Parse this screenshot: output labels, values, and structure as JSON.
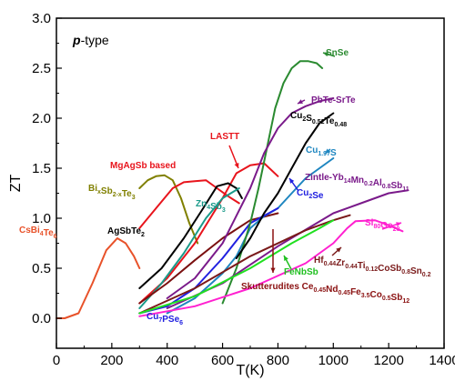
{
  "chart_data": {
    "type": "line",
    "panel_label": {
      "bold": "p",
      "rest": "-type"
    },
    "xlabel": "T(K)",
    "ylabel": "ZT",
    "xlim": [
      0,
      1400
    ],
    "ylim": [
      -0.3,
      3.0
    ],
    "xticks": [
      0,
      200,
      400,
      600,
      800,
      1000,
      1200,
      1400
    ],
    "yticks": [
      0.0,
      0.5,
      1.0,
      1.5,
      2.0,
      2.5,
      3.0
    ],
    "grid": false,
    "series": [
      {
        "color": "#e8522a",
        "x": [
          0,
          30,
          80,
          130,
          180,
          220,
          250,
          280,
          300
        ],
        "y": [
          0.0,
          0.0,
          0.05,
          0.35,
          0.68,
          0.8,
          0.75,
          0.62,
          0.5
        ]
      },
      {
        "color": "#808000",
        "x": [
          300,
          330,
          360,
          390,
          420,
          450,
          480,
          510
        ],
        "y": [
          1.3,
          1.38,
          1.42,
          1.43,
          1.38,
          1.2,
          0.95,
          0.75
        ]
      },
      {
        "color": "#e8141c",
        "x": [
          300,
          360,
          420,
          460,
          500,
          540,
          580,
          620,
          660
        ],
        "y": [
          0.9,
          1.1,
          1.3,
          1.36,
          1.37,
          1.38,
          1.3,
          1.22,
          1.15
        ]
      },
      {
        "color": "#e8141c",
        "x": [
          300,
          400,
          500,
          600,
          650,
          700,
          750,
          800
        ],
        "y": [
          0.15,
          0.4,
          0.75,
          1.2,
          1.45,
          1.53,
          1.55,
          1.42
        ]
      },
      {
        "color": "#000000",
        "x": [
          300,
          380,
          460,
          530,
          580,
          620,
          650,
          670
        ],
        "y": [
          0.3,
          0.5,
          0.8,
          1.1,
          1.32,
          1.35,
          1.3,
          1.2
        ]
      },
      {
        "color": "#1a9a8a",
        "x": [
          300,
          380,
          460,
          540,
          600,
          660
        ],
        "y": [
          0.1,
          0.35,
          0.65,
          1.0,
          1.2,
          1.3
        ]
      },
      {
        "color": "#7a1010",
        "x": [
          300,
          400,
          500,
          600,
          700,
          800
        ],
        "y": [
          0.15,
          0.35,
          0.58,
          0.8,
          0.98,
          1.05
        ]
      },
      {
        "color": "#1e86c0",
        "x": [
          400,
          500,
          600,
          650,
          700,
          750,
          800,
          850,
          900,
          950,
          1000
        ],
        "y": [
          0.05,
          0.2,
          0.45,
          0.62,
          0.9,
          1.02,
          1.1,
          1.25,
          1.4,
          1.5,
          1.6
        ]
      },
      {
        "color": "#2020e0",
        "x": [
          300,
          400,
          500,
          600,
          700,
          800
        ],
        "y": [
          0.05,
          0.12,
          0.3,
          0.6,
          0.95,
          1.1
        ]
      },
      {
        "color": "#2a8a30",
        "x": [
          600,
          650,
          700,
          730,
          760,
          790,
          820,
          850,
          880,
          910,
          940,
          960
        ],
        "y": [
          0.15,
          0.5,
          0.95,
          1.3,
          1.7,
          2.1,
          2.35,
          2.5,
          2.57,
          2.57,
          2.55,
          2.5
        ]
      },
      {
        "color": "#7a1a8a",
        "x": [
          400,
          500,
          600,
          700,
          750,
          800,
          850,
          900,
          950,
          1000
        ],
        "y": [
          0.2,
          0.4,
          0.75,
          1.3,
          1.65,
          1.9,
          2.05,
          2.12,
          2.17,
          2.2
        ]
      },
      {
        "color": "#000000",
        "x": [
          650,
          700,
          750,
          800,
          850,
          900,
          950,
          1000
        ],
        "y": [
          0.6,
          0.8,
          1.05,
          1.25,
          1.5,
          1.75,
          1.95,
          2.05
        ]
      },
      {
        "color": "#7a1a8a",
        "x": [
          400,
          600,
          800,
          1000,
          1100,
          1200,
          1270
        ],
        "y": [
          0.1,
          0.35,
          0.72,
          1.05,
          1.15,
          1.25,
          1.28
        ]
      },
      {
        "color": "#ff20d0",
        "x": [
          300,
          500,
          700,
          900,
          1000,
          1050,
          1080,
          1150,
          1200,
          1250
        ],
        "y": [
          0.02,
          0.12,
          0.3,
          0.55,
          0.75,
          0.9,
          0.97,
          0.98,
          0.93,
          0.87
        ]
      },
      {
        "color": "#7a1a1a",
        "x": [
          300,
          500,
          700,
          900,
          1000,
          1060
        ],
        "y": [
          0.05,
          0.3,
          0.62,
          0.88,
          0.98,
          1.03
        ]
      },
      {
        "color": "#20e020",
        "x": [
          300,
          500,
          700,
          850,
          950,
          1000
        ],
        "y": [
          0.05,
          0.22,
          0.5,
          0.75,
          0.9,
          0.98
        ]
      }
    ],
    "annotations": [
      {
        "color": "#e8522a",
        "parts": [
          [
            "CsBi",
            "n"
          ],
          [
            "4",
            "sub"
          ],
          [
            "Te",
            "n"
          ],
          [
            "6",
            "sub"
          ]
        ]
      },
      {
        "color": "#808000",
        "parts": [
          [
            "Bi",
            "n"
          ],
          [
            "x",
            "sub"
          ],
          [
            "Sb",
            "n"
          ],
          [
            "2-x",
            "sub"
          ],
          [
            "Te",
            "n"
          ],
          [
            "3",
            "sub"
          ]
        ]
      },
      {
        "color": "#e8141c",
        "parts": [
          [
            "MgAgSb based",
            "n"
          ]
        ]
      },
      {
        "color": "#e8141c",
        "parts": [
          [
            "LASTT",
            "n"
          ]
        ]
      },
      {
        "color": "#000000",
        "parts": [
          [
            "AgSbTe",
            "n"
          ],
          [
            "2",
            "sub"
          ]
        ]
      },
      {
        "color": "#1a9a8a",
        "parts": [
          [
            "Zn",
            "n"
          ],
          [
            "4",
            "sub"
          ],
          [
            "Sb",
            "n"
          ],
          [
            "3",
            "sub"
          ]
        ]
      },
      {
        "color": "#2a8a30",
        "parts": [
          [
            "SnSe",
            "n"
          ]
        ]
      },
      {
        "color": "#7a1a8a",
        "parts": [
          [
            "PbTe-SrTe",
            "n"
          ]
        ]
      },
      {
        "color": "#000000",
        "parts": [
          [
            "Cu",
            "n"
          ],
          [
            "2",
            "sub"
          ],
          [
            "S",
            "n"
          ],
          [
            "0.52",
            "sub"
          ],
          [
            "Te",
            "n"
          ],
          [
            "0.48",
            "sub"
          ]
        ]
      },
      {
        "color": "#1e86c0",
        "parts": [
          [
            "Cu",
            "n"
          ],
          [
            "1.97",
            "sub"
          ],
          [
            "S",
            "n"
          ]
        ]
      },
      {
        "color": "#7a1a8a",
        "parts": [
          [
            "Zintle-Yb",
            "n"
          ],
          [
            "14",
            "sub"
          ],
          [
            "Mn",
            "n"
          ],
          [
            "0.2",
            "sub"
          ],
          [
            "Al",
            "n"
          ],
          [
            "0.8",
            "sub"
          ],
          [
            "Sb",
            "n"
          ],
          [
            "11",
            "sub"
          ]
        ]
      },
      {
        "color": "#2020e0",
        "parts": [
          [
            "Cu",
            "n"
          ],
          [
            "2",
            "sub"
          ],
          [
            "Se",
            "n"
          ]
        ]
      },
      {
        "color": "#ff20d0",
        "parts": [
          [
            "Si",
            "n"
          ],
          [
            "80",
            "sub"
          ],
          [
            "Ge",
            "n"
          ],
          [
            "20",
            "sub"
          ]
        ]
      },
      {
        "color": "#7a1a1a",
        "parts": [
          [
            "Hf",
            "n"
          ],
          [
            "0.44",
            "sub"
          ],
          [
            "Zr",
            "n"
          ],
          [
            "0.44",
            "sub"
          ],
          [
            "Ti",
            "n"
          ],
          [
            "0.12",
            "sub"
          ],
          [
            "CoSb",
            "n"
          ],
          [
            "0.8",
            "sub"
          ],
          [
            "Sn",
            "n"
          ],
          [
            "0.2",
            "sub"
          ]
        ]
      },
      {
        "color": "#20c020",
        "parts": [
          [
            "FeNbSb",
            "n"
          ]
        ]
      },
      {
        "color": "#8a1010",
        "parts": [
          [
            "Skutterudites Ce",
            "n"
          ],
          [
            "0.45",
            "sub"
          ],
          [
            "Nd",
            "n"
          ],
          [
            "0.45",
            "sub"
          ],
          [
            "Fe",
            "n"
          ],
          [
            "3.5",
            "sub"
          ],
          [
            "Co",
            "n"
          ],
          [
            "0.5",
            "sub"
          ],
          [
            "Sb",
            "n"
          ],
          [
            "12",
            "sub"
          ]
        ]
      },
      {
        "color": "#2020e0",
        "parts": [
          [
            "Cu",
            "n"
          ],
          [
            "7",
            "sub"
          ],
          [
            "PSe",
            "n"
          ],
          [
            "6",
            "sub"
          ]
        ]
      }
    ]
  }
}
